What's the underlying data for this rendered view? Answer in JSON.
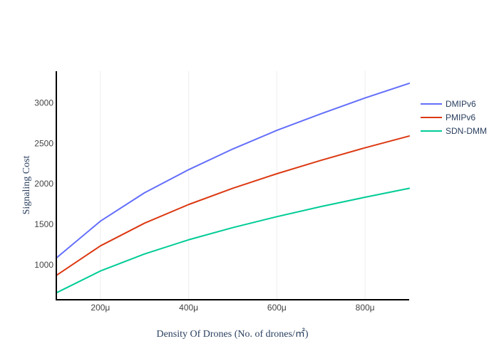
{
  "chart_data": {
    "type": "line",
    "xlabel": "Density Of Drones (No. of drones/㎡)",
    "ylabel": "Signaling Cost",
    "x": [
      0.0001,
      0.0002,
      0.0003,
      0.0004,
      0.0005,
      0.0006,
      0.0007,
      0.0008,
      0.0009
    ],
    "xlim": [
      0.0001,
      0.0009
    ],
    "ylim": [
      570,
      3390
    ],
    "x_ticks": [
      {
        "value": 0.0002,
        "label": "200μ"
      },
      {
        "value": 0.0004,
        "label": "400μ"
      },
      {
        "value": 0.0006,
        "label": "600μ"
      },
      {
        "value": 0.0008,
        "label": "800μ"
      }
    ],
    "y_ticks": [
      {
        "value": 1000,
        "label": "1000"
      },
      {
        "value": 1500,
        "label": "1500"
      },
      {
        "value": 2000,
        "label": "2000"
      },
      {
        "value": 2500,
        "label": "2500"
      },
      {
        "value": 3000,
        "label": "3000"
      }
    ],
    "grid": {
      "x": true,
      "y": false
    },
    "legend_position": "right",
    "series": [
      {
        "name": "DMIPv6",
        "color": "#636efa",
        "values": [
          1085,
          1540,
          1890,
          2175,
          2430,
          2660,
          2865,
          3060,
          3240
        ]
      },
      {
        "name": "PMIPv6",
        "color": "#dc3912",
        "values": [
          870,
          1235,
          1515,
          1745,
          1945,
          2125,
          2290,
          2445,
          2590
        ]
      },
      {
        "name": "SDN-DMM",
        "color": "#00cc96",
        "values": [
          655,
          925,
          1135,
          1310,
          1460,
          1595,
          1720,
          1835,
          1945
        ]
      }
    ]
  }
}
